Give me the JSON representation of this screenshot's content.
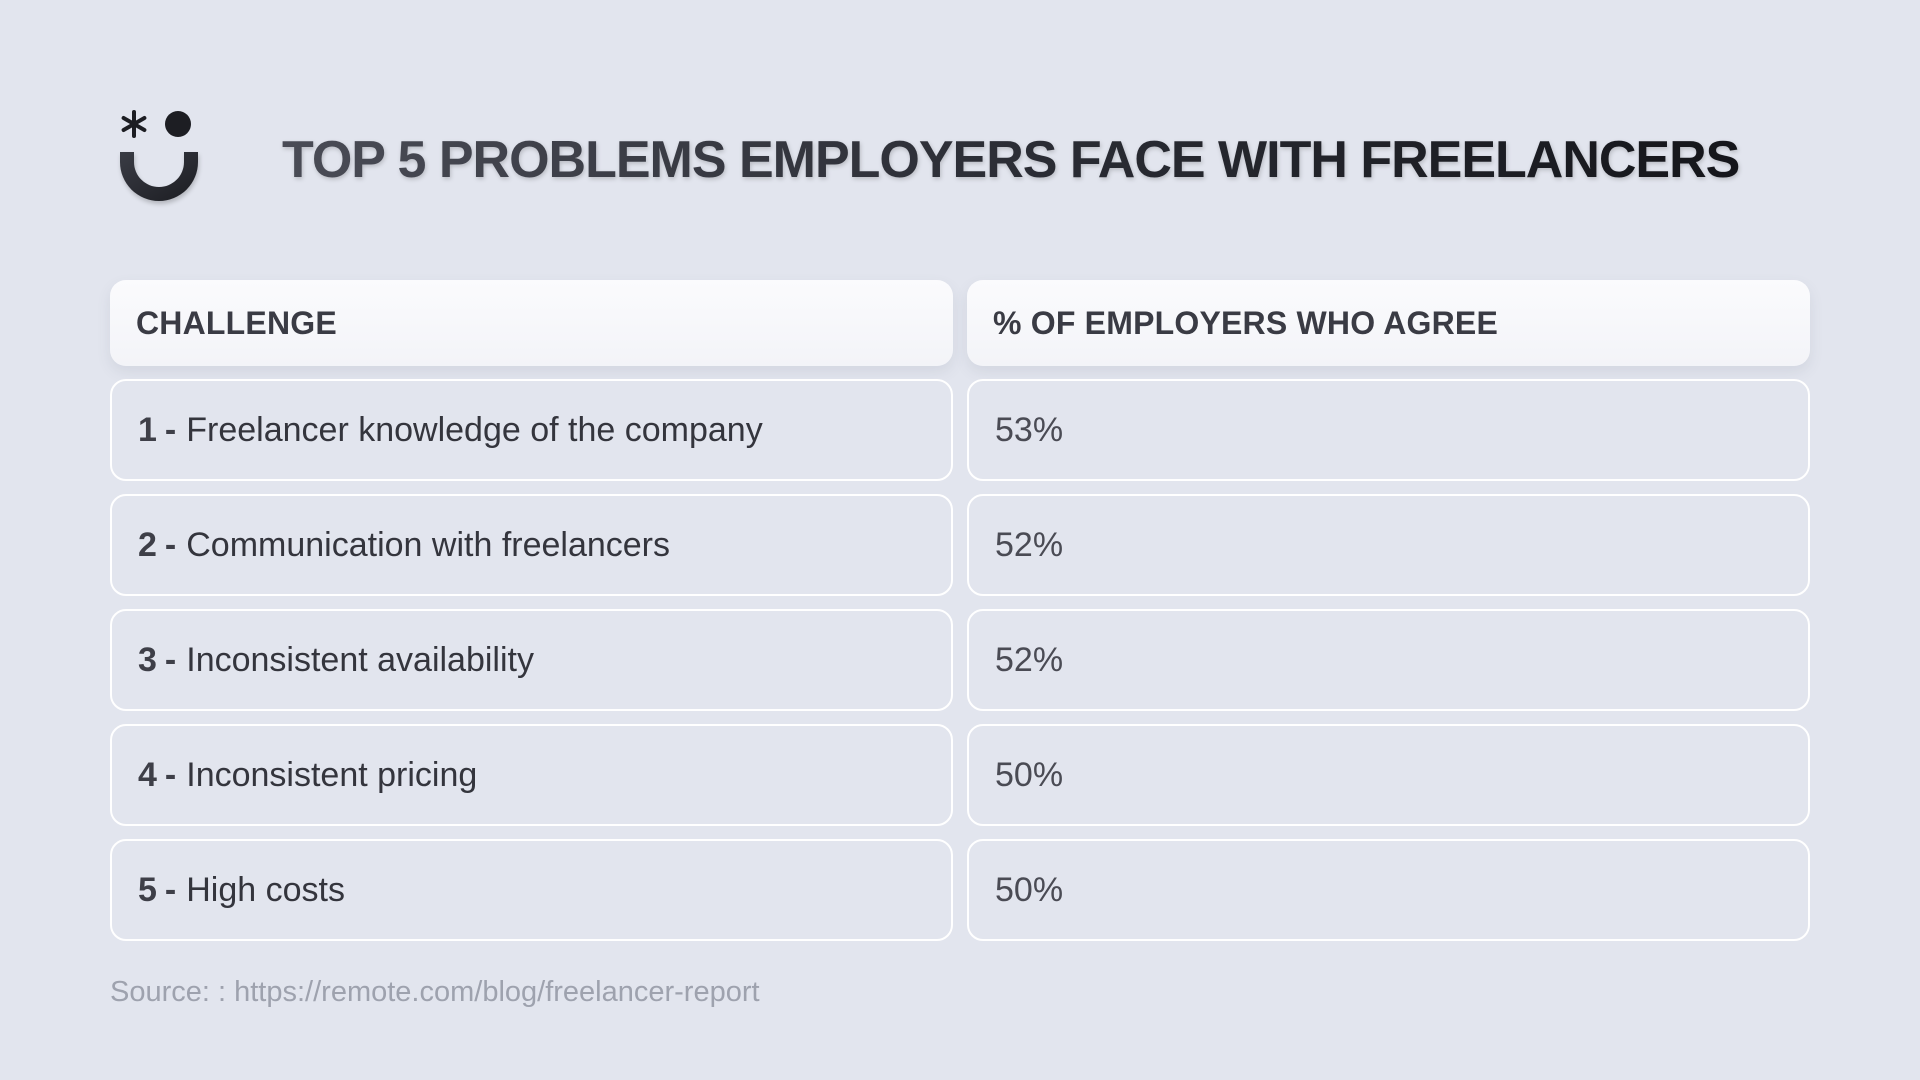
{
  "title": "TOP 5 PROBLEMS EMPLOYERS FACE WITH FREELANCERS",
  "table": {
    "headers": [
      "CHALLENGE",
      "% OF EMPLOYERS WHO AGREE"
    ],
    "rows": [
      {
        "num": "1",
        "label": "Freelancer knowledge of the company",
        "value": "53%"
      },
      {
        "num": "2",
        "label": "Communication with freelancers",
        "value": "52%"
      },
      {
        "num": "3",
        "label": "Inconsistent availability",
        "value": "52%"
      },
      {
        "num": "4",
        "label": "Inconsistent pricing",
        "value": "50%"
      },
      {
        "num": "5",
        "label": "High costs",
        "value": "50%"
      }
    ]
  },
  "source": "Source: : https://remote.com/blog/freelancer-report",
  "colors": {
    "background": "#e2e5ee",
    "text_dark": "#2e2f37",
    "source_text": "#9ea2ae",
    "cell_border": "#ffffff"
  },
  "chart_data": {
    "type": "table",
    "title": "TOP 5 PROBLEMS EMPLOYERS FACE WITH FREELANCERS",
    "columns": [
      "CHALLENGE",
      "% OF EMPLOYERS WHO AGREE"
    ],
    "categories": [
      "Freelancer knowledge of the company",
      "Communication with freelancers",
      "Inconsistent availability",
      "Inconsistent pricing",
      "High costs"
    ],
    "values": [
      53,
      52,
      52,
      50,
      50
    ]
  }
}
